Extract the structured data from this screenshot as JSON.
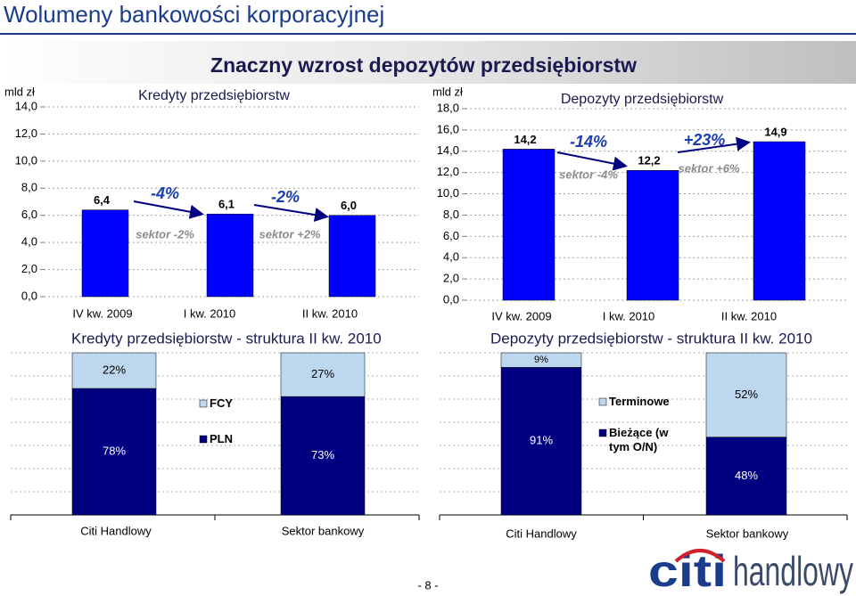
{
  "slide": {
    "title": "Wolumeny bankowości korporacyjnej",
    "banner": "Znaczny wzrost depozytów przedsiębiorstw",
    "page": "- 8 -",
    "logo": {
      "brand": "citi",
      "name": "handlowy"
    }
  },
  "chart_data": [
    {
      "type": "bar",
      "title": "Kredyty przedsiębiorstw",
      "ylabel": "mld zł",
      "categories": [
        "IV kw. 2009",
        "I kw. 2010",
        "II kw. 2010"
      ],
      "values": [
        6.4,
        6.1,
        6.0
      ],
      "value_labels": [
        "6,4",
        "6,1",
        "6,0"
      ],
      "color": "#0000ff",
      "ylim": [
        0,
        14
      ],
      "yticks": [
        {
          "value": 0,
          "label": "0,0"
        },
        {
          "value": 2,
          "label": "2,0"
        },
        {
          "value": 4,
          "label": "4,0"
        },
        {
          "value": 6,
          "label": "6,0"
        },
        {
          "value": 8,
          "label": "8,0"
        },
        {
          "value": 10,
          "label": "10,0"
        },
        {
          "value": 12,
          "label": "12,0"
        },
        {
          "value": 14,
          "label": "14,0"
        }
      ],
      "grid": true,
      "annotations": [
        "-4%",
        "sektor -2%",
        "-2%",
        "sektor +2%"
      ]
    },
    {
      "type": "bar",
      "title": "Depozyty przedsiębiorstw",
      "ylabel": "mld zł",
      "categories": [
        "IV kw. 2009",
        "I kw. 2010",
        "II kw. 2010"
      ],
      "values": [
        14.2,
        12.2,
        14.9
      ],
      "value_labels": [
        "14,2",
        "12,2",
        "14,9"
      ],
      "color": "#0000ff",
      "ylim": [
        0,
        18
      ],
      "yticks": [
        {
          "value": 0,
          "label": "0,0"
        },
        {
          "value": 2,
          "label": "2,0"
        },
        {
          "value": 4,
          "label": "4,0"
        },
        {
          "value": 6,
          "label": "6,0"
        },
        {
          "value": 8,
          "label": "8,0"
        },
        {
          "value": 10,
          "label": "10,0"
        },
        {
          "value": 12,
          "label": "12,0"
        },
        {
          "value": 14,
          "label": "14,0"
        },
        {
          "value": 16,
          "label": "16,0"
        },
        {
          "value": 18,
          "label": "18,0"
        }
      ],
      "grid": true,
      "annotations": [
        "-14%",
        "sektor -4%",
        "+23%",
        "sektor +6%"
      ]
    },
    {
      "type": "stacked_bar",
      "title": "Kredyty przedsiębiorstw - struktura II kw. 2010",
      "categories": [
        "Citi Handlowy",
        "Sektor bankowy"
      ],
      "ylim": [
        0,
        100
      ],
      "series": [
        {
          "name": "PLN",
          "color": "#000080",
          "values": [
            78,
            73
          ],
          "value_labels": [
            "78%",
            "73%"
          ]
        },
        {
          "name": "FCY",
          "color": "#bdd7ee",
          "values": [
            22,
            27
          ],
          "value_labels": [
            "22%",
            "27%"
          ]
        }
      ]
    },
    {
      "type": "stacked_bar",
      "title": "Depozyty przedsiębiorstw - struktura II kw. 2010",
      "categories": [
        "Citi Handlowy",
        "Sektor bankowy"
      ],
      "ylim": [
        0,
        100
      ],
      "series": [
        {
          "name": "Bieżące (w tym O/N)",
          "color": "#000080",
          "values": [
            91,
            48
          ],
          "value_labels": [
            "91%",
            "48%"
          ]
        },
        {
          "name": "Terminowe",
          "color": "#bdd7ee",
          "values": [
            9,
            52
          ],
          "value_labels": [
            "9%",
            "52%"
          ]
        }
      ]
    }
  ]
}
